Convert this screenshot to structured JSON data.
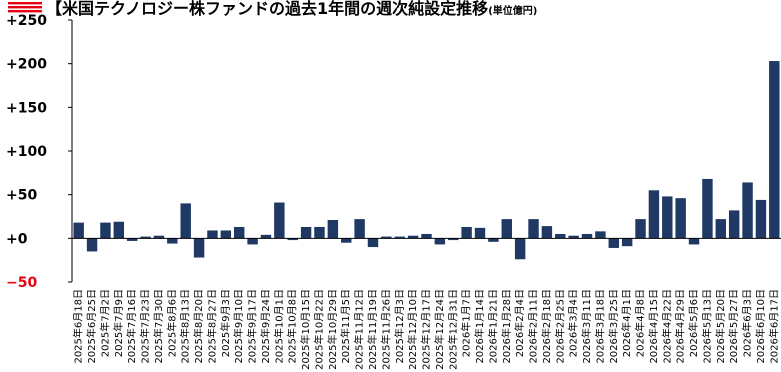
{
  "title": "【米国テクノロジー株ファンドの過去1年間の週次純設定推移",
  "title_unit": "(単位億円)",
  "chart_data": {
    "type": "bar",
    "title": "【米国テクノロジー株ファンドの過去1年間の週次純設定推移",
    "unit": "(単位億円)",
    "xlabel": "",
    "ylabel": "",
    "ylim": [
      -50,
      250
    ],
    "yticks": [
      "+250",
      "+200",
      "+150",
      "+100",
      "+50",
      "+0",
      "−50"
    ],
    "ytick_values": [
      250,
      200,
      150,
      100,
      50,
      0,
      -50
    ],
    "grid": false,
    "categories": [
      "2025年6月18日",
      "2025年6月25日",
      "2025年7月2日",
      "2025年7月9日",
      "2025年7月16日",
      "2025年7月23日",
      "2025年7月30日",
      "2025年8月6日",
      "2025年8月13日",
      "2025年8月20日",
      "2025年8月27日",
      "2025年9月3日",
      "2025年9月10日",
      "2025年9月17日",
      "2025年9月24日",
      "2025年10月1日",
      "2025年10月8日",
      "2025年10月15日",
      "2025年10月22日",
      "2025年10月29日",
      "2025年11月5日",
      "2025年11月12日",
      "2025年11月19日",
      "2025年11月26日",
      "2025年12月3日",
      "2025年12月10日",
      "2025年12月17日",
      "2025年12月24日",
      "2025年12月31日",
      "2026年1月7日",
      "2026年1月14日",
      "2026年1月21日",
      "2026年1月28日",
      "2026年2月4日",
      "2026年2月11日",
      "2026年2月18日",
      "2026年2月25日",
      "2026年3月4日",
      "2026年3月11日",
      "2026年3月18日",
      "2026年3月25日",
      "2026年4月1日",
      "2026年4月8日",
      "2026年4月15日",
      "2026年4月22日",
      "2026年4月29日",
      "2026年5月6日",
      "2026年5月13日",
      "2026年5月20日",
      "2026年5月27日",
      "2026年6月3日",
      "2026年6月10日",
      "2026年6月17日"
    ],
    "values": [
      18,
      -15,
      18,
      19,
      -3,
      2,
      3,
      -6,
      40,
      -22,
      9,
      9,
      13,
      -7,
      4,
      41,
      -2,
      13,
      13,
      21,
      -5,
      22,
      -10,
      2,
      2,
      3,
      5,
      -7,
      -2,
      13,
      12,
      -4,
      22,
      -24,
      22,
      14,
      5,
      3,
      5,
      8,
      -11,
      -9,
      22,
      55,
      48,
      46,
      -7,
      68,
      22,
      32,
      64,
      44,
      203
    ],
    "colors": {
      "bar": "#1f3864",
      "negative_tick": "#e60012",
      "axis": "#000000"
    }
  }
}
